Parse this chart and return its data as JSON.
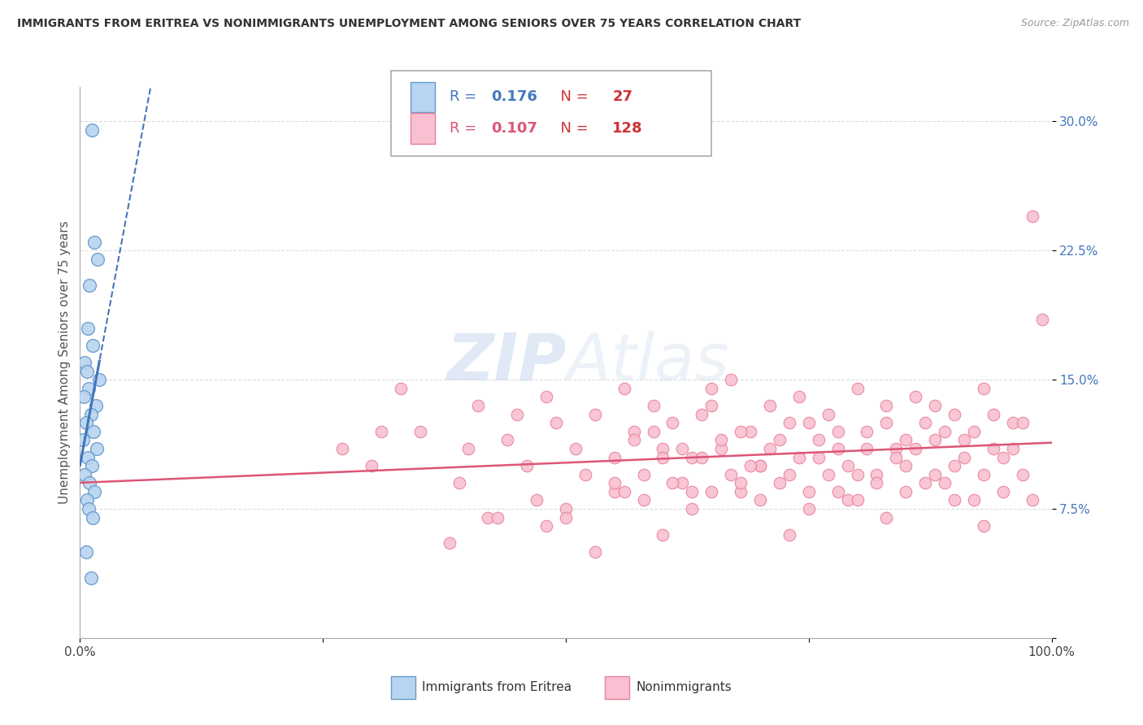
{
  "title": "IMMIGRANTS FROM ERITREA VS NONIMMIGRANTS UNEMPLOYMENT AMONG SENIORS OVER 75 YEARS CORRELATION CHART",
  "source": "Source: ZipAtlas.com",
  "ylabel": "Unemployment Among Seniors over 75 years",
  "xlim": [
    0,
    100
  ],
  "ylim": [
    0,
    32
  ],
  "xticks": [
    0,
    25,
    50,
    75,
    100
  ],
  "xticklabels": [
    "0.0%",
    "",
    "",
    "",
    "100.0%"
  ],
  "yticks": [
    0,
    7.5,
    15.0,
    22.5,
    30.0
  ],
  "yticklabels": [
    "",
    "7.5%",
    "15.0%",
    "22.5%",
    "30.0%"
  ],
  "blue_R": 0.176,
  "blue_N": 27,
  "pink_R": 0.107,
  "pink_N": 128,
  "blue_color": "#b8d4f0",
  "blue_edge": "#6699cc",
  "pink_color": "#f8c0d0",
  "pink_edge": "#e8809a",
  "blue_line_color": "#4477bb",
  "pink_line_color": "#dd5577",
  "watermark": "ZIPAtlas",
  "blue_scatter_x": [
    1.2,
    1.5,
    1.8,
    1.0,
    0.8,
    1.3,
    0.5,
    0.7,
    2.0,
    0.9,
    0.4,
    1.6,
    1.1,
    0.6,
    1.4,
    0.3,
    1.7,
    0.8,
    1.2,
    0.5,
    1.0,
    1.5,
    0.7,
    0.9,
    1.3,
    0.6,
    1.1
  ],
  "blue_scatter_y": [
    29.5,
    23.0,
    22.0,
    20.5,
    18.0,
    17.0,
    16.0,
    15.5,
    15.0,
    14.5,
    14.0,
    13.5,
    13.0,
    12.5,
    12.0,
    11.5,
    11.0,
    10.5,
    10.0,
    9.5,
    9.0,
    8.5,
    8.0,
    7.5,
    7.0,
    5.0,
    3.5
  ],
  "pink_scatter_x": [
    27,
    31,
    33,
    39,
    41,
    42,
    44,
    46,
    47,
    48,
    49,
    50,
    51,
    52,
    53,
    55,
    56,
    57,
    59,
    60,
    61,
    62,
    63,
    64,
    65,
    66,
    67,
    68,
    69,
    70,
    71,
    72,
    73,
    74,
    75,
    76,
    77,
    78,
    79,
    80,
    81,
    82,
    83,
    84,
    85,
    86,
    87,
    88,
    89,
    90,
    91,
    92,
    93,
    94,
    95,
    96,
    97,
    98,
    99,
    38,
    43,
    48,
    53,
    58,
    63,
    68,
    73,
    78,
    83,
    88,
    93,
    98,
    30,
    35,
    40,
    45,
    50,
    55,
    60,
    65,
    70,
    75,
    80,
    85,
    90,
    95,
    97,
    96,
    94,
    93,
    92,
    91,
    90,
    89,
    88,
    87,
    86,
    85,
    84,
    83,
    82,
    81,
    80,
    79,
    78,
    77,
    76,
    75,
    74,
    73,
    72,
    71,
    70,
    69,
    68,
    67,
    66,
    65,
    64,
    63,
    62,
    61,
    60,
    59,
    58,
    57,
    56,
    55
  ],
  "pink_scatter_y": [
    11.0,
    12.0,
    14.5,
    9.0,
    13.5,
    7.0,
    11.5,
    10.0,
    8.0,
    14.0,
    12.5,
    7.5,
    11.0,
    9.5,
    13.0,
    8.5,
    14.5,
    12.0,
    13.5,
    6.0,
    12.5,
    9.0,
    10.5,
    13.0,
    14.5,
    11.0,
    15.0,
    8.5,
    12.0,
    10.0,
    13.5,
    11.5,
    9.5,
    14.0,
    12.5,
    10.5,
    13.0,
    11.0,
    8.0,
    14.5,
    12.0,
    9.5,
    13.5,
    11.0,
    10.0,
    14.0,
    12.5,
    11.5,
    9.0,
    13.0,
    10.5,
    12.0,
    14.5,
    11.0,
    8.5,
    12.5,
    9.5,
    24.5,
    18.5,
    5.5,
    7.0,
    6.5,
    5.0,
    8.0,
    7.5,
    9.0,
    6.0,
    8.5,
    7.0,
    9.5,
    6.5,
    8.0,
    10.0,
    12.0,
    11.0,
    13.0,
    7.0,
    9.0,
    11.0,
    8.5,
    10.0,
    7.5,
    9.5,
    11.5,
    8.0,
    10.5,
    12.5,
    11.0,
    13.0,
    9.5,
    8.0,
    11.5,
    10.0,
    12.0,
    13.5,
    9.0,
    11.0,
    8.5,
    10.5,
    12.5,
    9.0,
    11.0,
    8.0,
    10.0,
    12.0,
    9.5,
    11.5,
    8.5,
    10.5,
    12.5,
    9.0,
    11.0,
    8.0,
    10.0,
    12.0,
    9.5,
    11.5,
    13.5,
    10.5,
    8.5,
    11.0,
    9.0,
    10.5,
    12.0,
    9.5,
    11.5,
    8.5,
    10.5
  ]
}
